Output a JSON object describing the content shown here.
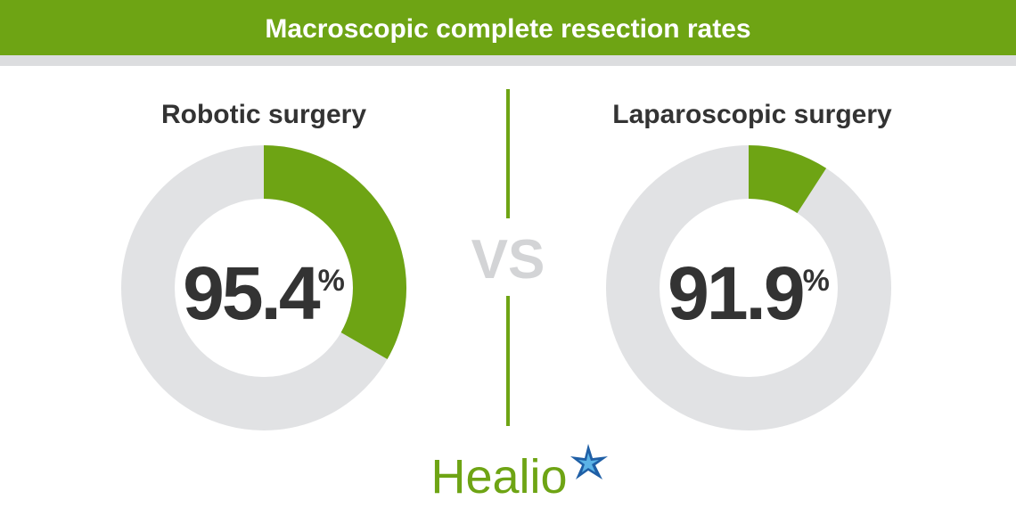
{
  "header": {
    "title": "Macroscopic complete resection rates"
  },
  "panels": [
    {
      "title": "Robotic surgery",
      "value": "95.4",
      "unit": "%"
    },
    {
      "title": "Laparoscopic surgery",
      "value": "91.9",
      "unit": "%"
    }
  ],
  "separator": "VS",
  "logo": "Healio"
}
